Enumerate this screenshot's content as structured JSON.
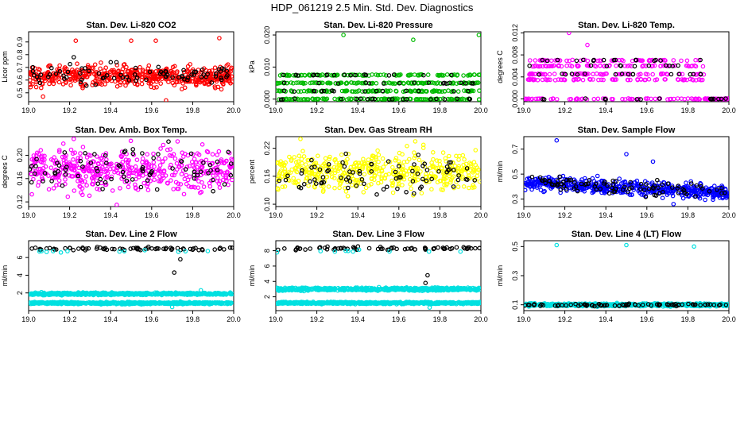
{
  "figure": {
    "title": "HDP_061219  2.5 Min. Std. Dev. Diagnostics"
  },
  "chart_data": [
    {
      "type": "scatter",
      "title": "Stan. Dev. Li-820 CO2",
      "ylabel": "Licor ppm",
      "xlim": [
        19.0,
        20.0
      ],
      "ylim": [
        0.43,
        0.98
      ],
      "xticks": [
        "19.0",
        "19.2",
        "19.4",
        "19.6",
        "19.8",
        "20.0"
      ],
      "yticks": [
        "0.5",
        "0.6",
        "0.7",
        "0.8",
        "0.9"
      ],
      "yticks_values": [
        0.5,
        0.6,
        0.7,
        0.8,
        0.9
      ],
      "series": [
        {
          "name": "main",
          "color": "#ff0000",
          "n": 520,
          "center": 0.63,
          "spread": 0.05,
          "outliers": [
            [
              19.5,
              0.91
            ],
            [
              19.62,
              0.91
            ],
            [
              19.93,
              0.93
            ],
            [
              19.23,
              0.91
            ],
            [
              19.07,
              0.47
            ],
            [
              19.67,
              0.44
            ]
          ]
        },
        {
          "name": "secondary",
          "color": "#000000",
          "n": 80,
          "center": 0.64,
          "spread": 0.05,
          "outliers": [
            [
              19.22,
              0.78
            ]
          ]
        }
      ]
    },
    {
      "type": "scatter",
      "title": "Stan. Dev. Li-820 Pressure",
      "ylabel": "kPa",
      "xlim": [
        19.0,
        20.0
      ],
      "ylim": [
        -0.0008,
        0.021
      ],
      "xticks": [
        "19.0",
        "19.2",
        "19.4",
        "19.6",
        "19.8",
        "20.0"
      ],
      "yticks": [
        "0.000",
        "0.010",
        "0.020"
      ],
      "yticks_values": [
        0.0,
        0.01,
        0.02
      ],
      "series": [
        {
          "name": "main",
          "color": "#00bb00",
          "n": 450,
          "levels": [
            0.0,
            0.0025,
            0.005,
            0.0075
          ],
          "outliers": [
            [
              19.33,
              0.02
            ],
            [
              19.67,
              0.0185
            ],
            [
              19.99,
              0.02
            ]
          ]
        },
        {
          "name": "secondary",
          "color": "#000000",
          "n": 70,
          "levels": [
            0.0,
            0.0025,
            0.005,
            0.0075
          ],
          "outliers": []
        }
      ]
    },
    {
      "type": "scatter",
      "title": "Stan. Dev. Li-820 Temp.",
      "ylabel": "degrees C",
      "xlim": [
        19.0,
        20.0
      ],
      "ylim": [
        -0.0005,
        0.0122
      ],
      "xticks": [
        "19.0",
        "19.2",
        "19.4",
        "19.6",
        "19.8",
        "20.0"
      ],
      "yticks": [
        "0.000",
        "0.004",
        "0.008",
        "0.012"
      ],
      "yticks_values": [
        0.0,
        0.004,
        0.008,
        0.012
      ],
      "series": [
        {
          "name": "main",
          "color": "#ff00ff",
          "n": 380,
          "levels": [
            0.0,
            0.0035,
            0.0045,
            0.006,
            0.007
          ],
          "outliers": [
            [
              19.22,
              0.012
            ],
            [
              19.31,
              0.0098
            ]
          ]
        },
        {
          "name": "secondary",
          "color": "#000000",
          "n": 60,
          "levels": [
            0.0,
            0.0045,
            0.006,
            0.007
          ],
          "outliers": []
        }
      ]
    },
    {
      "type": "scatter",
      "title": "Stan. Dev. Amb. Box Temp.",
      "ylabel": "degrees C",
      "xlim": [
        19.0,
        20.0
      ],
      "ylim": [
        0.112,
        0.232
      ],
      "xticks": [
        "19.0",
        "19.2",
        "19.4",
        "19.6",
        "19.8",
        "20.0"
      ],
      "yticks": [
        "0.12",
        "0.16",
        "0.20"
      ],
      "yticks_values": [
        0.12,
        0.16,
        0.2
      ],
      "series": [
        {
          "name": "main",
          "color": "#ff00ff",
          "n": 470,
          "center": 0.175,
          "spread": 0.022,
          "outliers": [
            [
              19.22,
              0.228
            ],
            [
              19.43,
              0.115
            ]
          ]
        },
        {
          "name": "secondary",
          "color": "#000000",
          "n": 80,
          "center": 0.178,
          "spread": 0.02,
          "outliers": []
        }
      ]
    },
    {
      "type": "scatter",
      "title": "Stan. Dev. Gas Stream RH",
      "ylabel": "percent",
      "xlim": [
        19.0,
        20.0
      ],
      "ylim": [
        0.095,
        0.245
      ],
      "xticks": [
        "19.0",
        "19.2",
        "19.4",
        "19.6",
        "19.8",
        "20.0"
      ],
      "yticks": [
        "0.10",
        "0.16",
        "0.22"
      ],
      "yticks_values": [
        0.1,
        0.16,
        0.22
      ],
      "series": [
        {
          "name": "main",
          "color": "#ffff00",
          "n": 480,
          "center": 0.17,
          "spread": 0.025,
          "outliers": [
            [
              19.12,
              0.24
            ],
            [
              19.68,
              0.235
            ]
          ]
        },
        {
          "name": "secondary",
          "color": "#000000",
          "n": 80,
          "center": 0.165,
          "spread": 0.025,
          "outliers": []
        }
      ]
    },
    {
      "type": "scatter",
      "title": "Stan. Dev. Sample Flow",
      "ylabel": "ml/min",
      "xlim": [
        19.0,
        20.0
      ],
      "ylim": [
        0.24,
        0.8
      ],
      "xticks": [
        "19.0",
        "19.2",
        "19.4",
        "19.6",
        "19.8",
        "20.0"
      ],
      "yticks": [
        "0.3",
        "0.5",
        "0.7"
      ],
      "yticks_values": [
        0.3,
        0.5,
        0.7
      ],
      "series": [
        {
          "name": "main",
          "color": "#0000ff",
          "n": 520,
          "center": 0.43,
          "spread": 0.035,
          "trend": -0.08,
          "outliers": [
            [
              19.16,
              0.77
            ],
            [
              19.5,
              0.66
            ],
            [
              19.63,
              0.6
            ],
            [
              19.73,
              0.26
            ]
          ]
        },
        {
          "name": "secondary",
          "color": "#000000",
          "n": 90,
          "center": 0.44,
          "spread": 0.035,
          "trend": -0.08,
          "outliers": []
        }
      ]
    },
    {
      "type": "scatter",
      "title": "Stan. Dev. Line 2 Flow",
      "ylabel": "ml/min",
      "xlim": [
        19.0,
        20.0
      ],
      "ylim": [
        0.0,
        7.9
      ],
      "xticks": [
        "19.0",
        "19.2",
        "19.4",
        "19.6",
        "19.8",
        "20.0"
      ],
      "yticks": [
        "2",
        "4",
        "6"
      ],
      "yticks_values": [
        2,
        4,
        6
      ],
      "series": [
        {
          "name": "upper",
          "color": "#000000",
          "n": 70,
          "center": 7.0,
          "spread": 0.12,
          "outliers": [
            [
              19.71,
              4.3
            ],
            [
              19.74,
              5.8
            ]
          ]
        },
        {
          "name": "cyan-upper",
          "color": "#00e0e0",
          "n": 12,
          "center": 6.7,
          "spread": 0.1,
          "outliers": []
        },
        {
          "name": "band-a",
          "color": "#00e0e0",
          "n": 600,
          "center": 1.9,
          "spread": 0.08,
          "outliers": []
        },
        {
          "name": "band-b",
          "color": "#00e0e0",
          "n": 600,
          "center": 0.85,
          "spread": 0.07,
          "outliers": [
            [
              19.7,
              0.4
            ],
            [
              19.84,
              2.3
            ]
          ]
        }
      ]
    },
    {
      "type": "scatter",
      "title": "Stan. Dev. Line 3 Flow",
      "ylabel": "ml/min",
      "xlim": [
        19.0,
        20.0
      ],
      "ylim": [
        0.2,
        9.3
      ],
      "xticks": [
        "19.0",
        "19.2",
        "19.4",
        "19.6",
        "19.8",
        "20.0"
      ],
      "yticks": [
        "2",
        "4",
        "6",
        "8"
      ],
      "yticks_values": [
        2,
        4,
        6,
        8
      ],
      "series": [
        {
          "name": "upper",
          "color": "#000000",
          "n": 70,
          "center": 8.3,
          "spread": 0.12,
          "outliers": [
            [
              19.74,
              4.8
            ],
            [
              19.73,
              3.8
            ]
          ]
        },
        {
          "name": "cyan-upper",
          "color": "#00e0e0",
          "n": 10,
          "center": 7.9,
          "spread": 0.1,
          "outliers": []
        },
        {
          "name": "band-a",
          "color": "#00e0e0",
          "n": 600,
          "center": 3.0,
          "spread": 0.12,
          "outliers": []
        },
        {
          "name": "band-b",
          "color": "#00e0e0",
          "n": 600,
          "center": 1.2,
          "spread": 0.08,
          "outliers": [
            [
              19.75,
              0.6
            ]
          ]
        }
      ]
    },
    {
      "type": "scatter",
      "title": "Stan. Dev. Line 4 (LT) Flow",
      "ylabel": "ml/min",
      "xlim": [
        19.0,
        20.0
      ],
      "ylim": [
        0.06,
        0.54
      ],
      "xticks": [
        "19.0",
        "19.2",
        "19.4",
        "19.6",
        "19.8",
        "20.0"
      ],
      "yticks": [
        "0.1",
        "0.3",
        "0.5"
      ],
      "yticks_values": [
        0.1,
        0.3,
        0.5
      ],
      "series": [
        {
          "name": "main",
          "color": "#00e0e0",
          "n": 700,
          "center": 0.1,
          "spread": 0.006,
          "outliers": [
            [
              19.16,
              0.51
            ],
            [
              19.5,
              0.51
            ],
            [
              19.83,
              0.5
            ]
          ]
        },
        {
          "name": "secondary",
          "color": "#000000",
          "n": 80,
          "center": 0.1,
          "spread": 0.005,
          "outliers": []
        }
      ]
    }
  ]
}
